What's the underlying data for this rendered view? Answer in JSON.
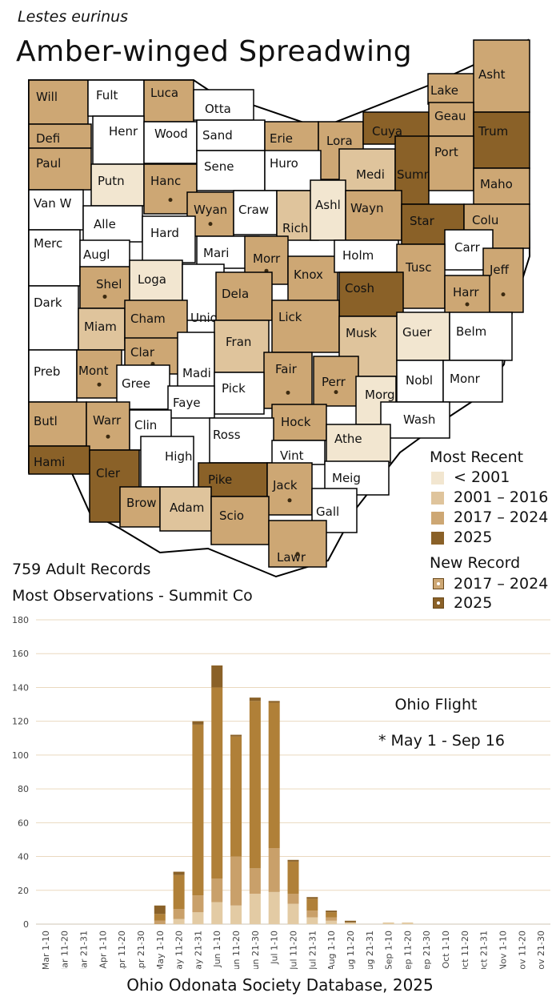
{
  "header": {
    "scientific_name": "Lestes eurinus",
    "common_name": "Amber-winged Spreadwing"
  },
  "colors": {
    "none": "#ffffff",
    "pre2001": "#f2e6d0",
    "y2001_2016": "#dfc49c",
    "y2017_2024": "#cda774",
    "y2025": "#8a6128",
    "border": "#000000",
    "chart_bar_light": "#e3cba4",
    "chart_bar_mid": "#c9a06a",
    "chart_bar_dark": "#b08038",
    "chart_bar_top": "#8a6128",
    "gridline": "#ead9bf"
  },
  "legend": {
    "most_recent_title": "Most Recent",
    "items": [
      {
        "label": "< 2001",
        "color": "#f2e6d0"
      },
      {
        "label": "2001 – 2016",
        "color": "#dfc49c"
      },
      {
        "label": "2017 – 2024",
        "color": "#cda774"
      },
      {
        "label": "2025",
        "color": "#8a6128"
      }
    ],
    "new_record_title": "New Record",
    "new_record_items": [
      {
        "label": "2017 – 2024",
        "color": "#cda774"
      },
      {
        "label": "2025",
        "color": "#8a6128"
      }
    ]
  },
  "counties": [
    {
      "name": "Will",
      "status": "2017-2024"
    },
    {
      "name": "Fult",
      "status": "none"
    },
    {
      "name": "Luca",
      "status": "2017-2024"
    },
    {
      "name": "Otta",
      "status": "none"
    },
    {
      "name": "Lake",
      "status": "2017-2024"
    },
    {
      "name": "Asht",
      "status": "2017-2024"
    },
    {
      "name": "Defi",
      "status": "2017-2024"
    },
    {
      "name": "Henr",
      "status": "none"
    },
    {
      "name": "Wood",
      "status": "none"
    },
    {
      "name": "Sand",
      "status": "none"
    },
    {
      "name": "Erie",
      "status": "2017-2024"
    },
    {
      "name": "Lora",
      "status": "2017-2024",
      "new_record": "2017-2024"
    },
    {
      "name": "Cuya",
      "status": "2025"
    },
    {
      "name": "Geau",
      "status": "2017-2024"
    },
    {
      "name": "Trum",
      "status": "2025"
    },
    {
      "name": "Paul",
      "status": "2017-2024"
    },
    {
      "name": "Putn",
      "status": "<2001"
    },
    {
      "name": "Hanc",
      "status": "2017-2024",
      "new_record": "2017-2024"
    },
    {
      "name": "Sene",
      "status": "none"
    },
    {
      "name": "Huro",
      "status": "none"
    },
    {
      "name": "Medi",
      "status": "2001-2016"
    },
    {
      "name": "Summ",
      "status": "2025"
    },
    {
      "name": "Port",
      "status": "2017-2024"
    },
    {
      "name": "Maho",
      "status": "2017-2024"
    },
    {
      "name": "Van W",
      "status": "none"
    },
    {
      "name": "Alle",
      "status": "none"
    },
    {
      "name": "Wyan",
      "status": "2017-2024",
      "new_record": "2017-2024"
    },
    {
      "name": "Craw",
      "status": "none"
    },
    {
      "name": "Rich",
      "status": "2001-2016"
    },
    {
      "name": "Ashl",
      "status": "<2001"
    },
    {
      "name": "Wayn",
      "status": "2017-2024"
    },
    {
      "name": "Star",
      "status": "2025"
    },
    {
      "name": "Colu",
      "status": "2017-2024"
    },
    {
      "name": "Merc",
      "status": "none"
    },
    {
      "name": "Augl",
      "status": "none"
    },
    {
      "name": "Hard",
      "status": "none"
    },
    {
      "name": "Mari",
      "status": "none"
    },
    {
      "name": "Morr",
      "status": "2017-2024",
      "new_record": "2017-2024"
    },
    {
      "name": "Knox",
      "status": "2017-2024"
    },
    {
      "name": "Holm",
      "status": "none"
    },
    {
      "name": "Carr",
      "status": "none"
    },
    {
      "name": "Tusc",
      "status": "2017-2024"
    },
    {
      "name": "Jeff",
      "status": "2017-2024",
      "new_record": "2017-2024"
    },
    {
      "name": "Shel",
      "status": "2017-2024",
      "new_record": "2017-2024"
    },
    {
      "name": "Loga",
      "status": "<2001"
    },
    {
      "name": "Unio",
      "status": "none"
    },
    {
      "name": "Dela",
      "status": "2017-2024"
    },
    {
      "name": "Cosh",
      "status": "2025"
    },
    {
      "name": "Harr",
      "status": "2017-2024",
      "new_record": "2017-2024"
    },
    {
      "name": "Dark",
      "status": "none"
    },
    {
      "name": "Miam",
      "status": "2001-2016"
    },
    {
      "name": "Cham",
      "status": "2017-2024"
    },
    {
      "name": "Lick",
      "status": "2017-2024"
    },
    {
      "name": "Musk",
      "status": "2001-2016"
    },
    {
      "name": "Guer",
      "status": "<2001"
    },
    {
      "name": "Belm",
      "status": "none"
    },
    {
      "name": "Clar",
      "status": "2017-2024",
      "new_record": "2017-2024"
    },
    {
      "name": "Fran",
      "status": "2001-2016"
    },
    {
      "name": "Madi",
      "status": "none"
    },
    {
      "name": "Preb",
      "status": "none"
    },
    {
      "name": "Mont",
      "status": "2017-2024",
      "new_record": "2017-2024"
    },
    {
      "name": "Gree",
      "status": "none"
    },
    {
      "name": "Fair",
      "status": "2017-2024",
      "new_record": "2017-2024"
    },
    {
      "name": "Perr",
      "status": "2017-2024",
      "new_record": "2017-2024"
    },
    {
      "name": "Nobl",
      "status": "none"
    },
    {
      "name": "Monr",
      "status": "none"
    },
    {
      "name": "Pick",
      "status": "none"
    },
    {
      "name": "Faye",
      "status": "none"
    },
    {
      "name": "Morg",
      "status": "<2001"
    },
    {
      "name": "Butl",
      "status": "2017-2024"
    },
    {
      "name": "Warr",
      "status": "2017-2024",
      "new_record": "2017-2024"
    },
    {
      "name": "Clin",
      "status": "none"
    },
    {
      "name": "Hock",
      "status": "2017-2024"
    },
    {
      "name": "Wash",
      "status": "none"
    },
    {
      "name": "Ross",
      "status": "none"
    },
    {
      "name": "Athe",
      "status": "<2001"
    },
    {
      "name": "Hami",
      "status": "2025"
    },
    {
      "name": "Cler",
      "status": "2025"
    },
    {
      "name": "High",
      "status": "none"
    },
    {
      "name": "Vint",
      "status": "none"
    },
    {
      "name": "Pike",
      "status": "2025"
    },
    {
      "name": "Jack",
      "status": "2017-2024",
      "new_record": "2017-2024"
    },
    {
      "name": "Meig",
      "status": "none"
    },
    {
      "name": "Brow",
      "status": "2017-2024"
    },
    {
      "name": "Adam",
      "status": "2001-2016"
    },
    {
      "name": "Scio",
      "status": "2017-2024"
    },
    {
      "name": "Gall",
      "status": "none"
    },
    {
      "name": "Lawr",
      "status": "2017-2024",
      "new_record": "2017-2024"
    }
  ],
  "stats": {
    "records": "759 Adult Records",
    "most_observations": "Most Observations - Summit Co"
  },
  "chart_data": {
    "type": "bar",
    "stacked": true,
    "title": "Ohio Flight",
    "annotation": "* May 1 - Sep 16",
    "ylim": [
      0,
      180
    ],
    "yticks": [
      0,
      20,
      40,
      60,
      80,
      100,
      120,
      140,
      160,
      180
    ],
    "categories": [
      "Mar 1-10",
      "Mar 11-20",
      "Mar 21-31",
      "Apr 1-10",
      "Apr 11-20",
      "Apr 21-30",
      "May 1-10",
      "May 11-20",
      "May 21-31",
      "Jun 1-10",
      "Jun 11-20",
      "Jun 21-30",
      "Jul 1-10",
      "Jul 11-20",
      "Jul 21-31",
      "Aug 1-10",
      "Aug 11-20",
      "Aug 21-31",
      "Sep 1-10",
      "Sep 11-20",
      "Sep 21-30",
      "Oct 1-10",
      "Oct 11-20",
      "Oct 21-31",
      "Nov 1-10",
      "Nov 11-20",
      "Nov 21-30"
    ],
    "series": [
      {
        "color": "#e3cba4",
        "values": [
          0,
          0,
          0,
          0,
          0,
          0,
          0,
          3,
          7,
          13,
          11,
          18,
          19,
          12,
          4,
          2,
          1,
          0,
          1,
          1,
          0,
          0,
          0,
          0,
          0,
          0,
          0
        ]
      },
      {
        "color": "#c9a06a",
        "values": [
          0,
          0,
          0,
          0,
          0,
          0,
          2,
          6,
          10,
          14,
          29,
          15,
          26,
          6,
          4,
          2,
          0,
          0,
          0,
          0,
          0,
          0,
          0,
          0,
          0,
          0,
          0
        ]
      },
      {
        "color": "#b08038",
        "values": [
          0,
          0,
          0,
          0,
          0,
          0,
          4,
          20,
          101,
          113,
          71,
          99,
          86,
          19,
          7,
          3,
          0,
          0,
          0,
          0,
          0,
          0,
          0,
          0,
          0,
          0,
          0
        ]
      },
      {
        "color": "#8a6128",
        "values": [
          0,
          0,
          0,
          0,
          0,
          0,
          5,
          2,
          2,
          13,
          1,
          2,
          1,
          1,
          1,
          1,
          1,
          0,
          0,
          0,
          0,
          0,
          0,
          0,
          0,
          0,
          0
        ]
      }
    ]
  },
  "footer": "Ohio Odonata Society Database, 2025"
}
